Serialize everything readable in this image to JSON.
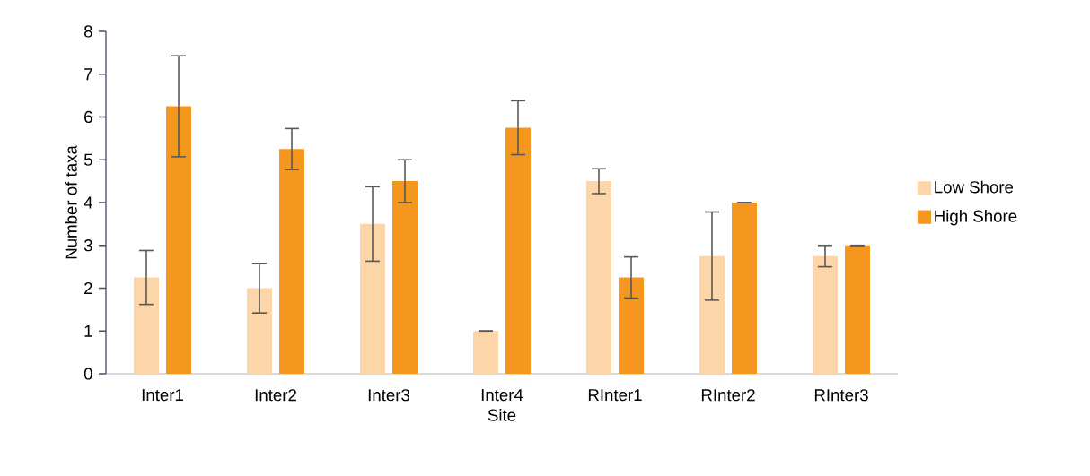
{
  "chart_data": {
    "type": "bar",
    "xlabel": "Site",
    "ylabel": "Number of taxa",
    "categories": [
      "Inter1",
      "Inter2",
      "Inter3",
      "Inter4",
      "RInter1",
      "RInter2",
      "RInter3"
    ],
    "series": [
      {
        "name": "Low Shore",
        "color": "#fcd5a8",
        "values": [
          2.25,
          2.0,
          3.5,
          1.0,
          4.5,
          2.75,
          2.75
        ],
        "errors": [
          0.63,
          0.58,
          0.87,
          0,
          0.29,
          1.03,
          0.25
        ]
      },
      {
        "name": "High Shore",
        "color": "#f5961f",
        "values": [
          6.25,
          5.25,
          4.5,
          5.75,
          2.25,
          4.0,
          3.0
        ],
        "errors": [
          1.18,
          0.48,
          0.5,
          0.63,
          0.48,
          0,
          0
        ]
      }
    ],
    "ylim": [
      0,
      8
    ],
    "yticks": [
      0,
      1,
      2,
      3,
      4,
      5,
      6,
      7,
      8
    ],
    "legend": "right",
    "grid": false
  }
}
